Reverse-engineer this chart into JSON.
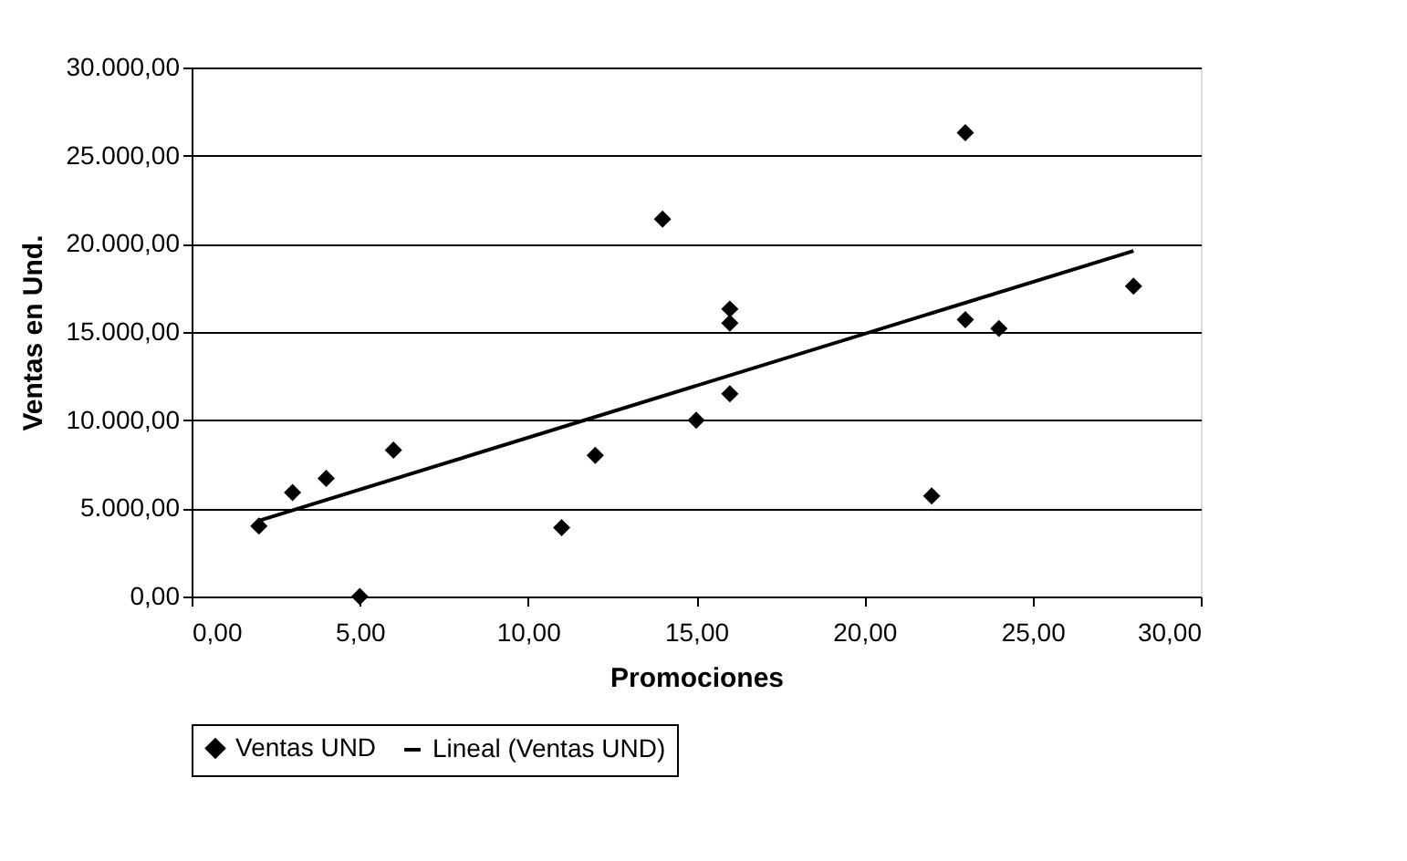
{
  "chart_data": {
    "type": "scatter",
    "xlabel": "Promociones",
    "ylabel": "Ventas en Und.",
    "xlim": [
      0,
      30
    ],
    "ylim": [
      0,
      30000
    ],
    "xticks": [
      {
        "value": 0,
        "label": "0,00"
      },
      {
        "value": 5,
        "label": "5,00"
      },
      {
        "value": 10,
        "label": "10,00"
      },
      {
        "value": 15,
        "label": "15,00"
      },
      {
        "value": 20,
        "label": "20,00"
      },
      {
        "value": 25,
        "label": "25,00"
      },
      {
        "value": 30,
        "label": "30,00"
      }
    ],
    "yticks": [
      {
        "value": 0,
        "label": "0,00"
      },
      {
        "value": 5000,
        "label": "5.000,00"
      },
      {
        "value": 10000,
        "label": "10.000,00"
      },
      {
        "value": 15000,
        "label": "15.000,00"
      },
      {
        "value": 20000,
        "label": "20.000,00"
      },
      {
        "value": 25000,
        "label": "25.000,00"
      },
      {
        "value": 30000,
        "label": "30.000,00"
      }
    ],
    "grid": "y",
    "legend": "bottom",
    "series": [
      {
        "name": "Ventas UND",
        "marker": "diamond",
        "color": "#000000",
        "x": [
          2,
          3,
          4,
          5,
          6,
          11,
          12,
          14,
          15,
          16,
          16,
          16,
          22,
          23,
          23,
          24,
          28
        ],
        "values": [
          4000,
          5900,
          6700,
          0,
          8300,
          3900,
          8000,
          21400,
          10000,
          11500,
          15500,
          16300,
          5700,
          15700,
          26300,
          15200,
          17600
        ]
      },
      {
        "name": "Lineal (Ventas UND)",
        "type": "line",
        "line_style": "solid",
        "color": "#000000",
        "x": [
          2,
          28
        ],
        "values": [
          4300,
          19600
        ]
      }
    ]
  }
}
